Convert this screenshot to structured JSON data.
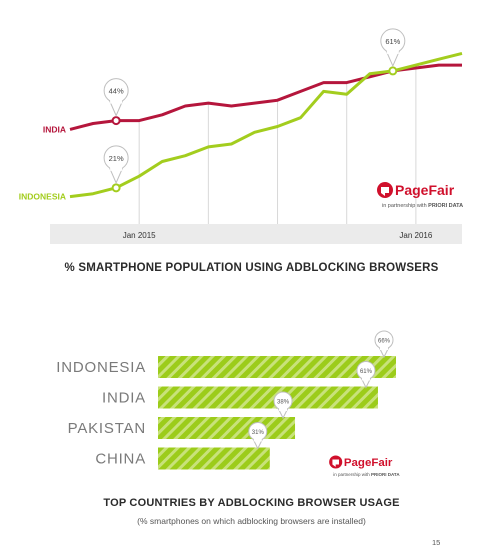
{
  "colors": {
    "india": "#b5163c",
    "indonesia": "#a3cd1e",
    "bar": "#9ccc1a",
    "bar_stripe": "#c8e27a",
    "axis_band": "#ebebeb",
    "callout_stroke": "#bfbfbf",
    "brand_red": "#d0102c"
  },
  "brand": {
    "name": "PageFair",
    "partnership_prefix": "in partnership with",
    "partner": "PRIORI DATA",
    "logo_icon": "pagefair-logo-icon"
  },
  "chart_data": [
    {
      "type": "line",
      "title": "% SMARTPHONE POPULATION USING ADBLOCKING BROWSERS",
      "x": [
        "2014-10",
        "2014-11",
        "2014-12",
        "2015-01",
        "2015-02",
        "2015-03",
        "2015-04",
        "2015-05",
        "2015-06",
        "2015-07",
        "2015-08",
        "2015-09",
        "2015-10",
        "2015-11",
        "2015-12",
        "2016-01",
        "2016-02",
        "2016-03"
      ],
      "x_tick_labels": [
        {
          "x": "2015-01",
          "label": "Jan 2015"
        },
        {
          "x": "2016-01",
          "label": "Jan 2016"
        }
      ],
      "grid": false,
      "series": [
        {
          "name": "INDIA",
          "values": [
            41,
            43,
            44,
            44,
            46,
            49,
            50,
            49,
            50,
            51,
            54,
            57,
            57,
            59,
            61,
            62,
            63,
            63
          ]
        },
        {
          "name": "INDONESIA",
          "values": [
            18,
            19,
            21,
            25,
            30,
            32,
            35,
            36,
            40,
            42,
            45,
            54,
            53,
            60,
            61,
            63,
            65,
            67
          ]
        }
      ],
      "callouts": [
        {
          "series": "INDIA",
          "x": "2014-12",
          "label": "44%"
        },
        {
          "series": "INDONESIA",
          "x": "2014-12",
          "label": "21%"
        },
        {
          "series": "INDONESIA",
          "x": "2015-12",
          "label": "61%"
        }
      ],
      "ylim": [
        10,
        75
      ]
    },
    {
      "type": "bar",
      "orientation": "horizontal",
      "title": "TOP COUNTRIES BY ADBLOCKING BROWSER USAGE",
      "subtitle": "(% smartphones on which adblocking browsers are installed)",
      "categories": [
        "INDONESIA",
        "INDIA",
        "PAKISTAN",
        "CHINA"
      ],
      "values": [
        66,
        61,
        38,
        31
      ],
      "value_labels": [
        "66%",
        "61%",
        "38%",
        "31%"
      ],
      "xlim": [
        0,
        66
      ]
    }
  ],
  "page_number": "15"
}
